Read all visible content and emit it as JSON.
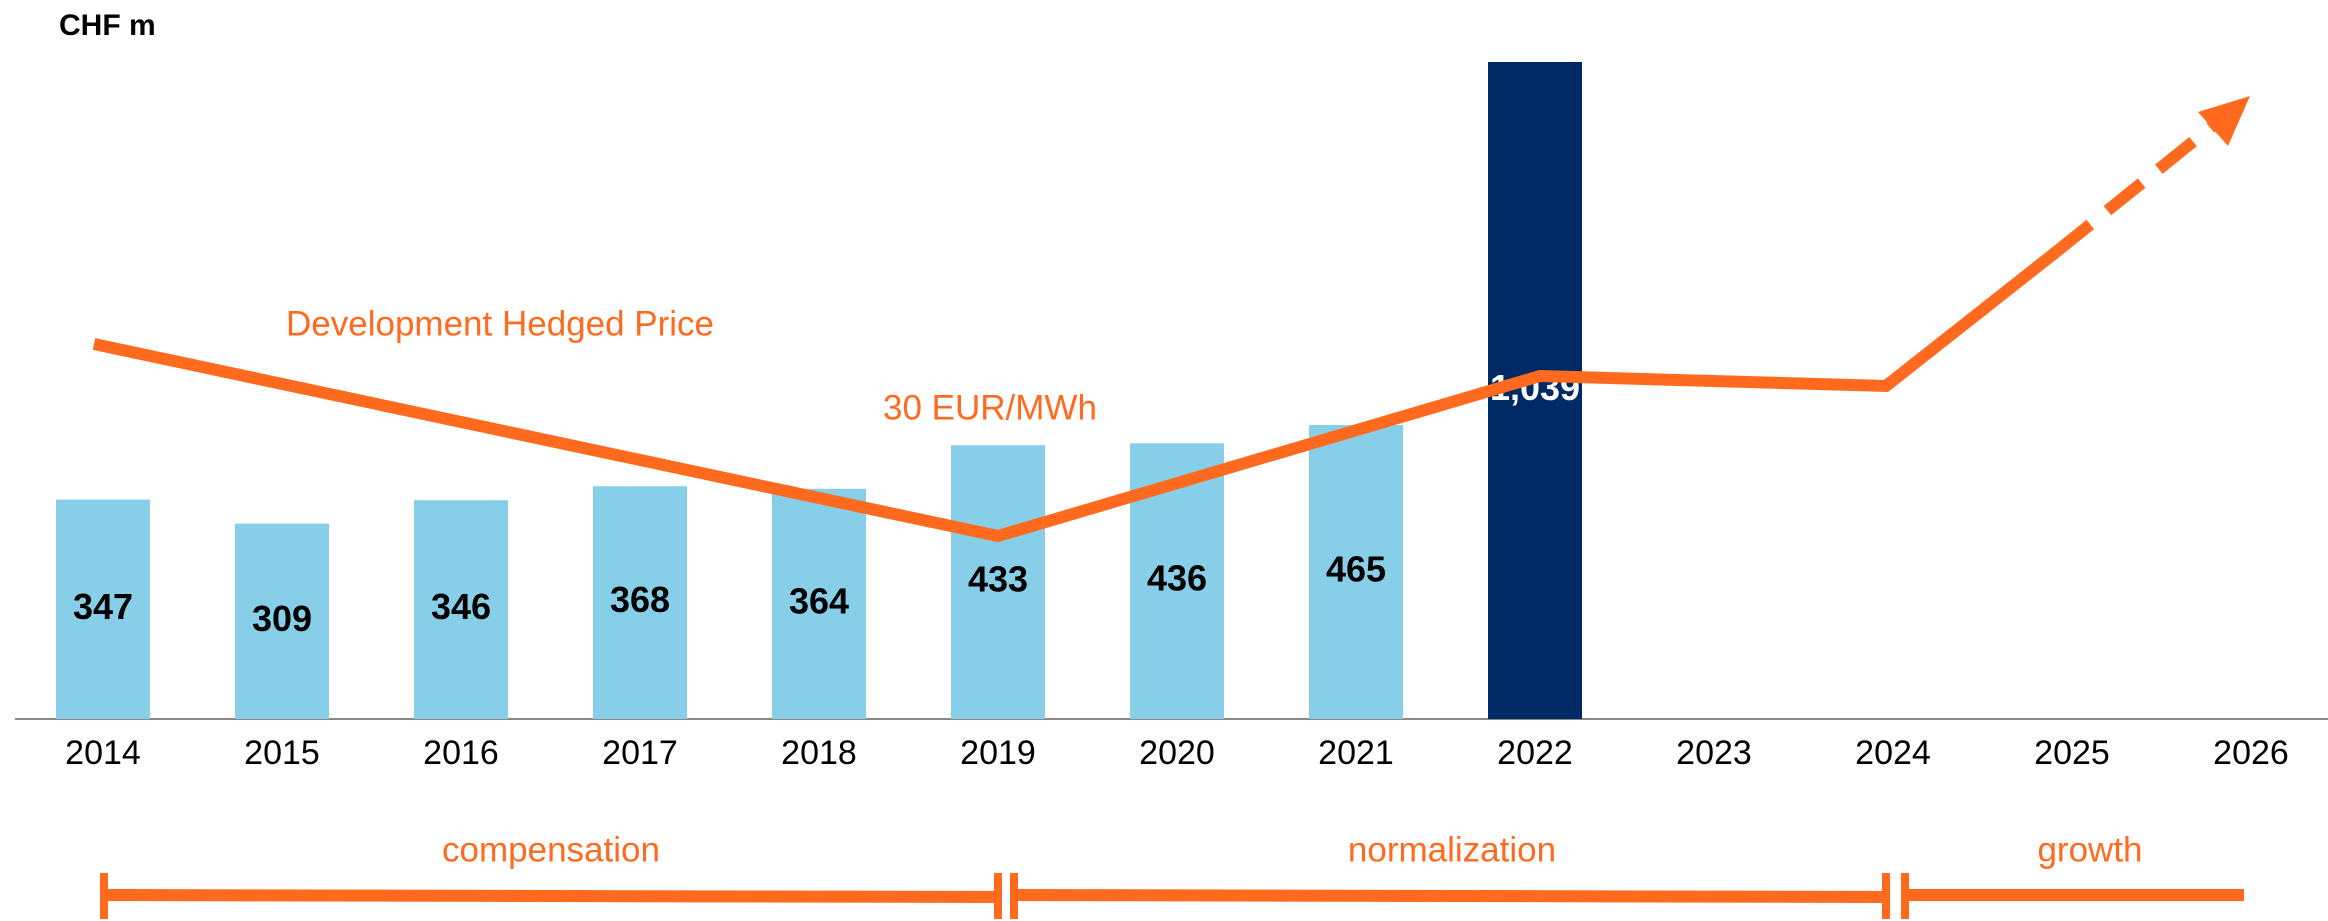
{
  "chart_data": {
    "type": "bar",
    "unit": "CHF m",
    "categories": [
      "2014",
      "2015",
      "2016",
      "2017",
      "2018",
      "2019",
      "2020",
      "2021",
      "2022",
      "2023",
      "2024",
      "2025",
      "2026"
    ],
    "values": [
      347,
      309,
      346,
      368,
      364,
      433,
      436,
      465,
      1039,
      null,
      null,
      null,
      null
    ],
    "value_labels": [
      "347",
      "309",
      "346",
      "368",
      "364",
      "433",
      "436",
      "465",
      "1,039",
      null,
      null,
      null,
      null
    ],
    "colors": [
      "#87cee9",
      "#87cee9",
      "#87cee9",
      "#87cee9",
      "#87cee9",
      "#87cee9",
      "#87cee9",
      "#87cee9",
      "#002a66",
      null,
      null,
      null,
      null
    ],
    "value_label_colors": [
      "#000000",
      "#000000",
      "#000000",
      "#000000",
      "#000000",
      "#000000",
      "#000000",
      "#000000",
      "#ffffff",
      null,
      null,
      null,
      null
    ],
    "annotations": [
      "Development Hedged Price",
      "30 EUR/MWh"
    ],
    "phases": [
      "compensation",
      "normalization",
      "growth"
    ],
    "accent_color": "#ff6a1f"
  }
}
